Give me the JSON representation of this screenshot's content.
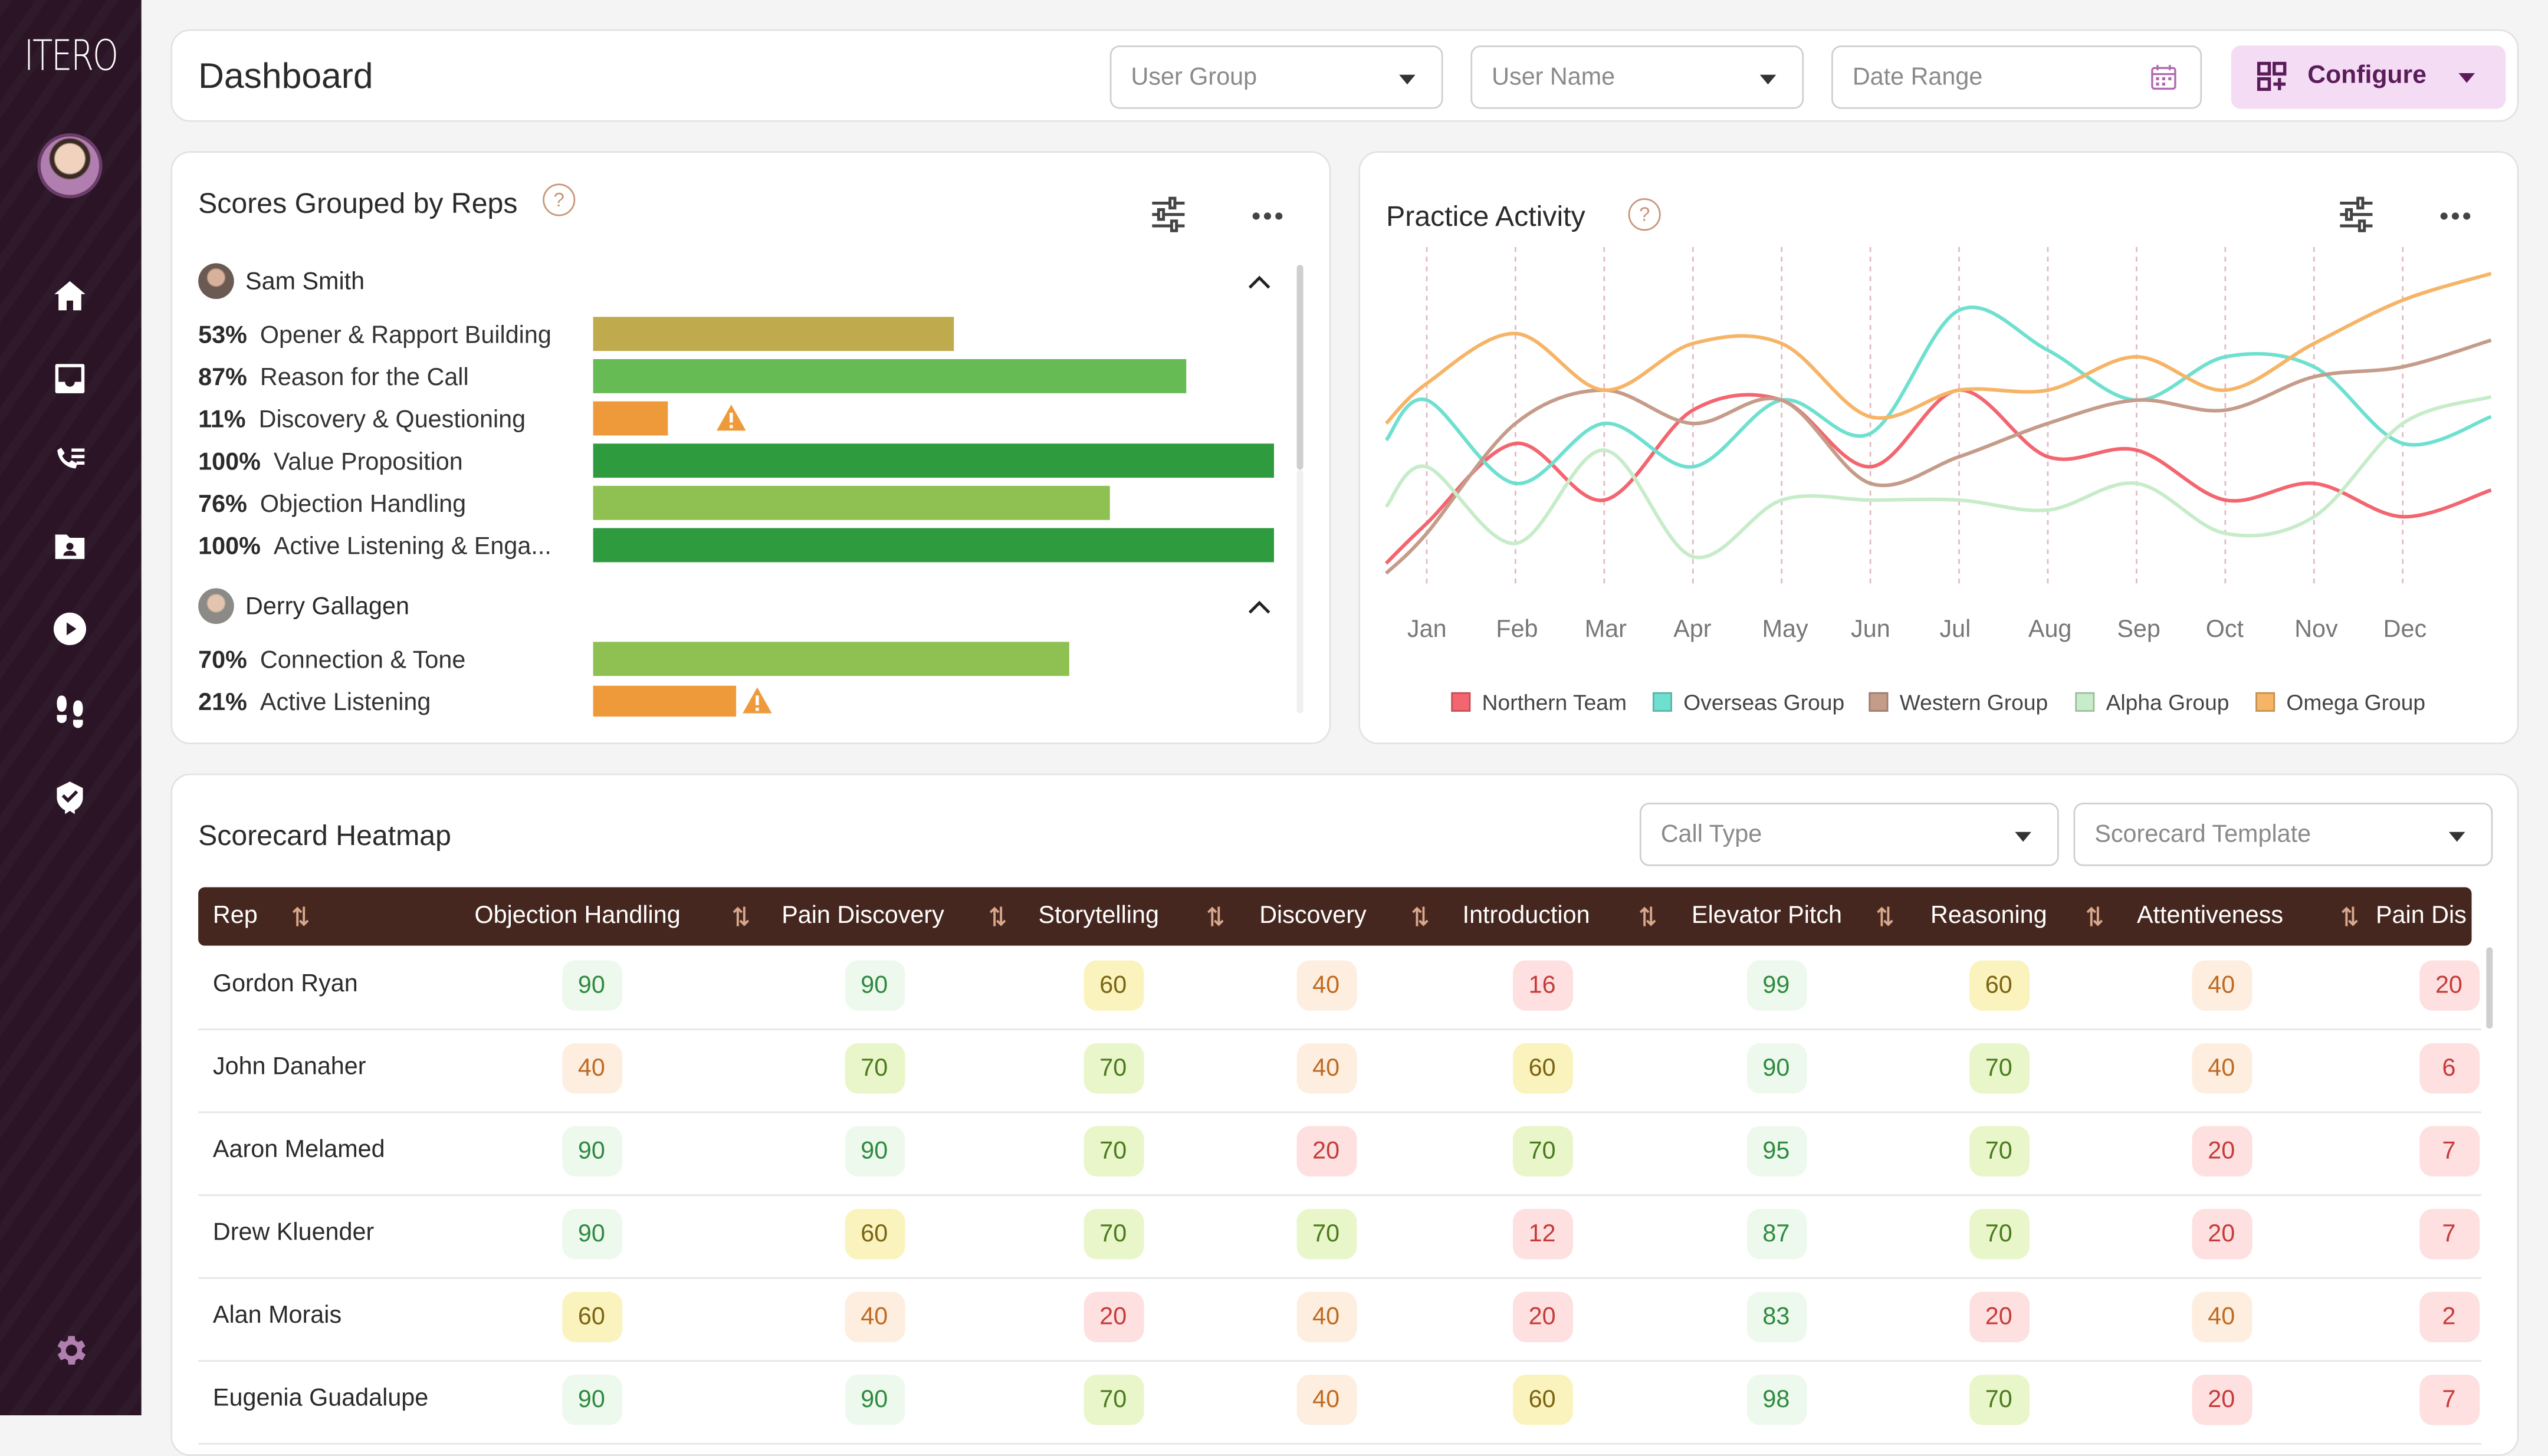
{
  "app": {
    "logo": "ITERO"
  },
  "header": {
    "title": "Dashboard",
    "user_group_placeholder": "User Group",
    "user_name_placeholder": "User Name",
    "date_range_placeholder": "Date Range",
    "configure_label": "Configure"
  },
  "scores": {
    "title": "Scores Grouped by Reps",
    "help": "?",
    "reps": [
      {
        "name": "Sam Smith",
        "metrics": [
          {
            "pct": "53%",
            "label": "Opener & Rapport Building",
            "value": 53,
            "color": "#bfab4e",
            "warn": false
          },
          {
            "pct": "87%",
            "label": "Reason for the Call",
            "value": 87,
            "color": "#66bb55",
            "warn": false
          },
          {
            "pct": "11%",
            "label": "Discovery & Questioning",
            "value": 11,
            "color": "#ef9a3a",
            "warn": true
          },
          {
            "pct": "100%",
            "label": "Value Proposition",
            "value": 100,
            "color": "#2e9b3e",
            "warn": false
          },
          {
            "pct": "76%",
            "label": "Objection Handling",
            "value": 76,
            "color": "#8ec052",
            "warn": false
          },
          {
            "pct": "100%",
            "label": "Active Listening & Enga...",
            "value": 100,
            "color": "#2e9b3e",
            "warn": false
          }
        ]
      },
      {
        "name": "Derry Gallagen",
        "metrics": [
          {
            "pct": "70%",
            "label": "Connection & Tone",
            "value": 70,
            "color": "#8ec052",
            "warn": false
          },
          {
            "pct": "21%",
            "label": "Active Listening",
            "value": 21,
            "color": "#ef9a3a",
            "warn": true
          }
        ]
      }
    ]
  },
  "practice": {
    "title": "Practice Activity",
    "help": "?"
  },
  "chart_data": {
    "type": "line",
    "categories": [
      "Jan",
      "Feb",
      "Mar",
      "Apr",
      "May",
      "Jun",
      "Jul",
      "Aug",
      "Sep",
      "Oct",
      "Nov",
      "Dec"
    ],
    "ylim": [
      0,
      100
    ],
    "grid": "vertical-dashed",
    "legend": "bottom",
    "series": [
      {
        "name": "Northern Team",
        "color": "#f3656f",
        "values": [
          18,
          42,
          25,
          52,
          55,
          35,
          58,
          38,
          40,
          25,
          30,
          20
        ]
      },
      {
        "name": "Overseas Group",
        "color": "#6fe0d0",
        "values": [
          55,
          30,
          48,
          35,
          55,
          45,
          82,
          70,
          55,
          68,
          65,
          42
        ]
      },
      {
        "name": "Western Group",
        "color": "#c59b89",
        "values": [
          15,
          48,
          58,
          48,
          55,
          30,
          38,
          48,
          55,
          52,
          62,
          65
        ]
      },
      {
        "name": "Alpha Group",
        "color": "#c7ecc9",
        "values": [
          35,
          12,
          40,
          8,
          25,
          25,
          25,
          22,
          30,
          15,
          20,
          48
        ]
      },
      {
        "name": "Omega Group",
        "color": "#f6b466",
        "values": [
          60,
          75,
          58,
          72,
          72,
          50,
          58,
          58,
          68,
          58,
          72,
          85
        ]
      }
    ]
  },
  "heatmap": {
    "title": "Scorecard Heatmap",
    "call_type_placeholder": "Call Type",
    "template_placeholder": "Scorecard Template",
    "columns": [
      "Rep",
      "Objection Handling",
      "Pain Discovery",
      "Storytelling",
      "Discovery",
      "Introduction",
      "Elevator Pitch",
      "Reasoning",
      "Attentiveness",
      "Pain Dis"
    ],
    "rows": [
      {
        "rep": "Gordon Ryan",
        "scores": [
          "90",
          "90",
          "60",
          "40",
          "16",
          "99",
          "60",
          "40",
          "20"
        ]
      },
      {
        "rep": "John Danaher",
        "scores": [
          "40",
          "70",
          "70",
          "40",
          "60",
          "90",
          "70",
          "40",
          "6"
        ]
      },
      {
        "rep": "Aaron Melamed",
        "scores": [
          "90",
          "90",
          "70",
          "20",
          "70",
          "95",
          "70",
          "20",
          "7"
        ]
      },
      {
        "rep": "Drew Kluender",
        "scores": [
          "90",
          "60",
          "70",
          "70",
          "12",
          "87",
          "70",
          "20",
          "7"
        ]
      },
      {
        "rep": "Alan Morais",
        "scores": [
          "60",
          "40",
          "20",
          "40",
          "20",
          "83",
          "20",
          "40",
          "2"
        ]
      },
      {
        "rep": "Eugenia Guadalupe",
        "scores": [
          "90",
          "90",
          "70",
          "40",
          "60",
          "98",
          "70",
          "20",
          "7"
        ]
      }
    ]
  }
}
